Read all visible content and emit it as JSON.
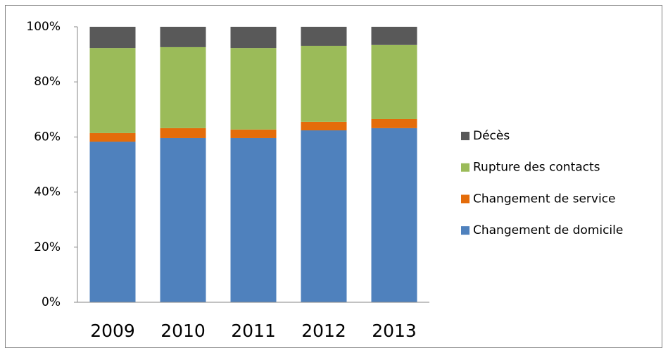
{
  "chart_data": {
    "type": "stacked_bar",
    "categories": [
      "2009",
      "2010",
      "2011",
      "2012",
      "2013"
    ],
    "series": [
      {
        "name": "Changement de domicile",
        "color": "#4f81bd",
        "values": [
          58.3,
          59.6,
          59.6,
          62.4,
          63.2
        ]
      },
      {
        "name": "Changement de service",
        "color": "#e46c0a",
        "values": [
          3.1,
          3.6,
          3.1,
          3.1,
          3.3
        ]
      },
      {
        "name": "Rupture des contacts",
        "color": "#9bbb59",
        "values": [
          30.9,
          29.4,
          29.6,
          27.6,
          26.9
        ]
      },
      {
        "name": "Décès",
        "color": "#595959",
        "values": [
          7.7,
          7.4,
          7.7,
          6.9,
          6.6
        ]
      }
    ],
    "ylim": [
      0,
      100
    ],
    "yticks": [
      {
        "value": 0,
        "label": "0%"
      },
      {
        "value": 20,
        "label": "20%"
      },
      {
        "value": 40,
        "label": "40%"
      },
      {
        "value": 60,
        "label": "60%"
      },
      {
        "value": 80,
        "label": "80%"
      },
      {
        "value": 100,
        "label": "100%"
      }
    ],
    "grid": false,
    "legend": "right"
  }
}
